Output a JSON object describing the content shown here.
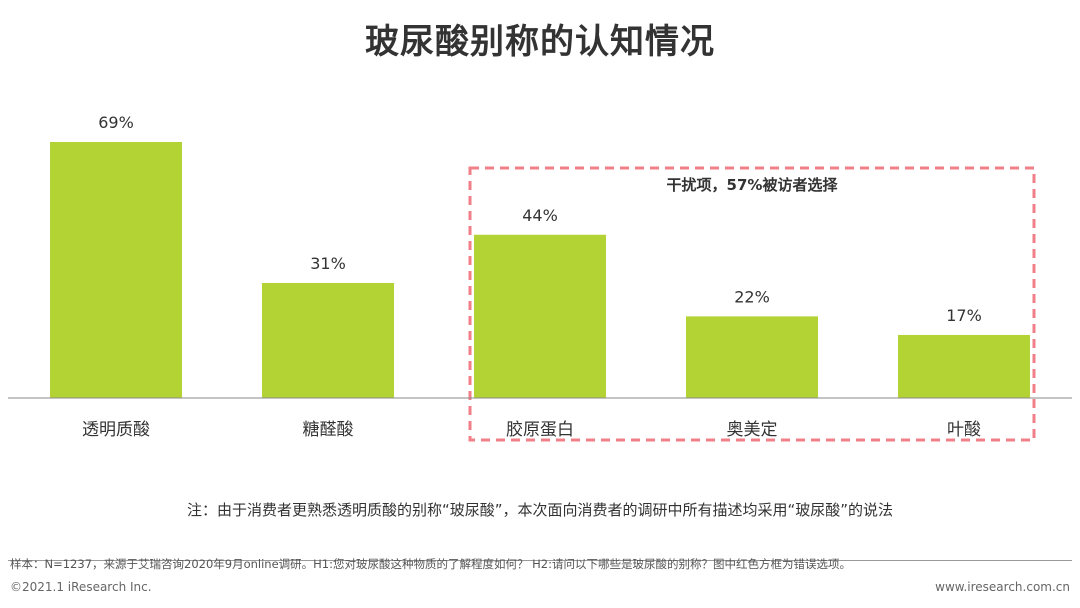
{
  "title": "玻尿酸别称的认知情况",
  "chart_data": {
    "type": "bar",
    "categories": [
      "透明质酸",
      "糖醛酸",
      "胶原蛋白",
      "奥美定",
      "叶酸"
    ],
    "values": [
      69,
      31,
      44,
      22,
      17
    ],
    "value_labels": [
      "69%",
      "31%",
      "44%",
      "22%",
      "17%"
    ],
    "unit": "%",
    "ylim": [
      0,
      100
    ],
    "grid": false,
    "bar_color": "#b3d234",
    "annotation": {
      "text": "干扰项，57%被访者选择",
      "covers_categories": [
        "胶原蛋白",
        "奥美定",
        "叶酸"
      ],
      "border_color": "#f07f88",
      "style": "dashed"
    }
  },
  "note": "注：由于消费者更熟悉透明质酸的别称“玻尿酸”，本次面向消费者的调研中所有描述均采用“玻尿酸”的说法",
  "footer": {
    "source": "样本：N=1237，来源于艾瑞咨询2020年9月online调研。H1:您对玻尿酸这种物质的了解程度如何？ H2:请问以下哪些是玻尿酸的别称？图中红色方框为错误选项。",
    "copyright": "©2021.1 iResearch Inc.",
    "website": "www.iresearch.com.cn"
  }
}
